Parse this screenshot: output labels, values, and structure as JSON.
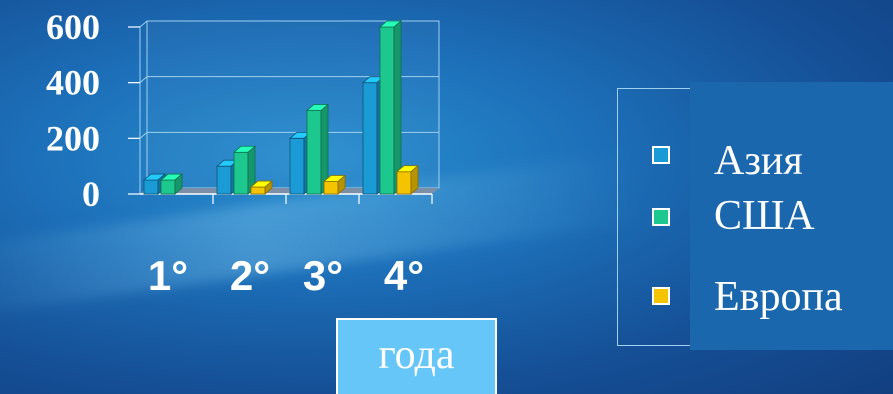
{
  "chart_data": {
    "type": "bar",
    "categories": [
      "1°",
      "2°",
      "3°",
      "4°"
    ],
    "series": [
      {
        "name": "Азия",
        "values": [
          50,
          100,
          200,
          400
        ],
        "color": "#1a9bd6"
      },
      {
        "name": "США",
        "values": [
          50,
          150,
          300,
          600
        ],
        "color": "#1cc88e"
      },
      {
        "name": "Европа",
        "values": [
          0,
          25,
          45,
          80
        ],
        "color": "#f5c400"
      }
    ],
    "y_ticks": [
      "0",
      "200",
      "400",
      "600"
    ],
    "ylim": [
      0,
      600
    ],
    "xlabel": "года",
    "ylabel": "",
    "title": "",
    "grid": true,
    "legend_position": "right"
  }
}
